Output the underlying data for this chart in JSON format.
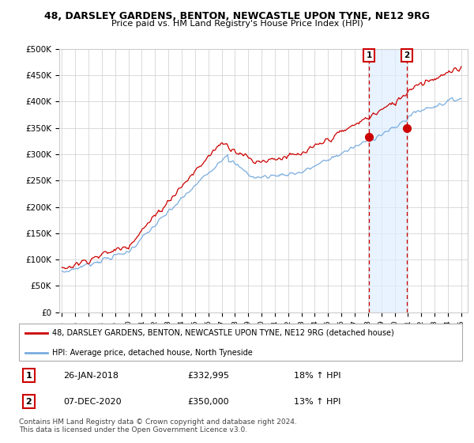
{
  "title1": "48, DARSLEY GARDENS, BENTON, NEWCASTLE UPON TYNE, NE12 9RG",
  "title2": "Price paid vs. HM Land Registry's House Price Index (HPI)",
  "ylim": [
    0,
    500000
  ],
  "yticks": [
    0,
    50000,
    100000,
    150000,
    200000,
    250000,
    300000,
    350000,
    400000,
    450000,
    500000
  ],
  "ytick_labels": [
    "£0",
    "£50K",
    "£100K",
    "£150K",
    "£200K",
    "£250K",
    "£300K",
    "£350K",
    "£400K",
    "£450K",
    "£500K"
  ],
  "xlim_start": 1994.8,
  "xlim_end": 2025.5,
  "marker1_x": 2018.07,
  "marker1_y": 332995,
  "marker2_x": 2020.92,
  "marker2_y": 350000,
  "marker1_label": "1",
  "marker2_label": "2",
  "marker1_date": "26-JAN-2018",
  "marker1_price": "£332,995",
  "marker1_hpi": "18% ↑ HPI",
  "marker2_date": "07-DEC-2020",
  "marker2_price": "£350,000",
  "marker2_hpi": "13% ↑ HPI",
  "legend_line1": "48, DARSLEY GARDENS, BENTON, NEWCASTLE UPON TYNE, NE12 9RG (detached house)",
  "legend_line2": "HPI: Average price, detached house, North Tyneside",
  "footer1": "Contains HM Land Registry data © Crown copyright and database right 2024.",
  "footer2": "This data is licensed under the Open Government Licence v3.0.",
  "red_color": "#cc0000",
  "blue_color": "#7aade0",
  "bg_color": "#ffffff",
  "shade_color": "#ddeeff",
  "grid_color": "#cccccc"
}
